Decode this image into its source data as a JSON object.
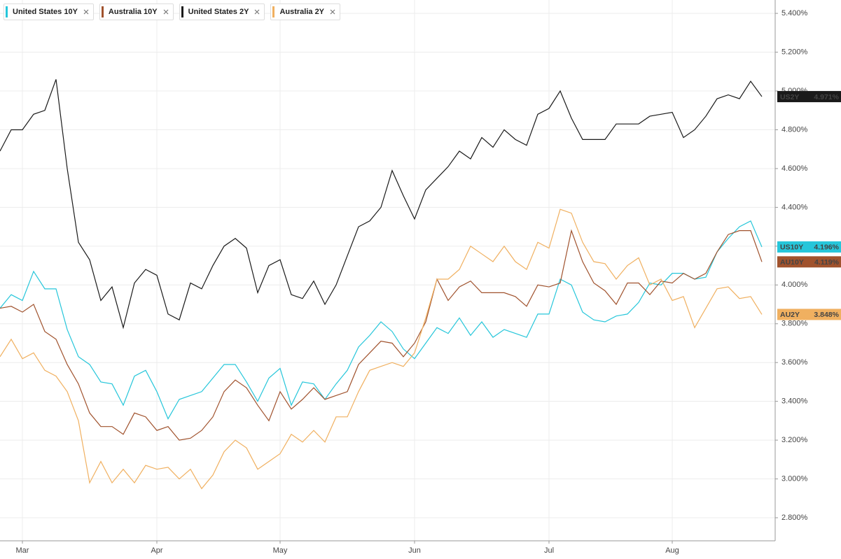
{
  "chart_data": {
    "type": "line",
    "categories": [
      null,
      null,
      "Mar",
      null,
      null,
      null,
      null,
      null,
      null,
      null,
      null,
      null,
      null,
      null,
      "Apr",
      null,
      null,
      null,
      null,
      null,
      null,
      null,
      null,
      null,
      null,
      "May",
      null,
      null,
      null,
      null,
      null,
      null,
      null,
      null,
      null,
      null,
      null,
      "Jun",
      null,
      null,
      null,
      null,
      null,
      null,
      null,
      null,
      null,
      null,
      null,
      "Jul",
      null,
      null,
      null,
      null,
      null,
      null,
      null,
      null,
      null,
      null,
      "Aug",
      null,
      null,
      null,
      null,
      null,
      null,
      null,
      null
    ],
    "series": [
      {
        "name": "United States 10Y",
        "short_name": "US10Y",
        "color": "#26c6da",
        "values": [
          3.88,
          3.95,
          3.92,
          4.07,
          3.98,
          3.98,
          3.77,
          3.63,
          3.59,
          3.5,
          3.49,
          3.38,
          3.53,
          3.56,
          3.45,
          3.31,
          3.41,
          3.43,
          3.45,
          3.52,
          3.59,
          3.59,
          3.5,
          3.4,
          3.52,
          3.57,
          3.38,
          3.5,
          3.49,
          3.41,
          3.49,
          3.56,
          3.68,
          3.74,
          3.81,
          3.76,
          3.67,
          3.62,
          3.7,
          3.78,
          3.75,
          3.83,
          3.74,
          3.81,
          3.73,
          3.77,
          3.75,
          3.73,
          3.85,
          3.85,
          4.03,
          4.0,
          3.86,
          3.82,
          3.81,
          3.84,
          3.85,
          3.91,
          4.01,
          4.0,
          4.06,
          4.06,
          4.03,
          4.04,
          4.17,
          4.24,
          4.3,
          4.33,
          4.196
        ],
        "value_labels": [
          null,
          null,
          null,
          null,
          null,
          null,
          null,
          null,
          null,
          null,
          null,
          null,
          null,
          null,
          null,
          null,
          null,
          null,
          null,
          null,
          null,
          null,
          null,
          null,
          null,
          null,
          null,
          null,
          null,
          null,
          null,
          null,
          null,
          null,
          null,
          null,
          null,
          null,
          null,
          null,
          null,
          null,
          null,
          null,
          null,
          null,
          null,
          null,
          null,
          null,
          null,
          null,
          null,
          null,
          null,
          null,
          null,
          null,
          null,
          null,
          null,
          null,
          null,
          null,
          null,
          null,
          null,
          null,
          "4.196%"
        ]
      },
      {
        "name": "Australia 10Y",
        "short_name": "AU10Y",
        "color": "#a0522d",
        "values": [
          3.88,
          3.89,
          3.86,
          3.9,
          3.76,
          3.72,
          3.59,
          3.49,
          3.34,
          3.27,
          3.27,
          3.23,
          3.34,
          3.32,
          3.25,
          3.27,
          3.2,
          3.21,
          3.25,
          3.32,
          3.45,
          3.51,
          3.47,
          3.38,
          3.3,
          3.45,
          3.36,
          3.41,
          3.47,
          3.41,
          3.43,
          3.45,
          3.59,
          3.65,
          3.71,
          3.7,
          3.63,
          3.7,
          3.81,
          4.03,
          3.92,
          3.99,
          4.02,
          3.96,
          3.96,
          3.96,
          3.94,
          3.89,
          4.0,
          3.99,
          4.01,
          4.28,
          4.12,
          4.01,
          3.97,
          3.9,
          4.01,
          4.01,
          3.95,
          4.02,
          4.01,
          4.06,
          4.03,
          4.06,
          4.17,
          4.26,
          4.28,
          4.28,
          4.119
        ],
        "value_labels": [
          null,
          null,
          null,
          null,
          null,
          null,
          null,
          null,
          null,
          null,
          null,
          null,
          null,
          null,
          null,
          null,
          null,
          null,
          null,
          null,
          null,
          null,
          null,
          null,
          null,
          null,
          null,
          null,
          null,
          null,
          null,
          null,
          null,
          null,
          null,
          null,
          null,
          null,
          null,
          null,
          null,
          null,
          null,
          null,
          null,
          null,
          null,
          null,
          null,
          null,
          null,
          null,
          null,
          null,
          null,
          null,
          null,
          null,
          null,
          null,
          null,
          null,
          null,
          null,
          null,
          null,
          null,
          null,
          "4.119%"
        ]
      },
      {
        "name": "United States 2Y",
        "short_name": "US2Y",
        "color": "#1a1a1a",
        "values": [
          4.69,
          4.8,
          4.8,
          4.88,
          4.9,
          5.06,
          4.6,
          4.22,
          4.13,
          3.92,
          3.99,
          3.78,
          4.01,
          4.08,
          4.05,
          3.85,
          3.82,
          4.01,
          3.98,
          4.1,
          4.2,
          4.24,
          4.19,
          3.96,
          4.1,
          4.13,
          3.95,
          3.93,
          4.02,
          3.9,
          4.0,
          4.15,
          4.3,
          4.33,
          4.4,
          4.59,
          4.46,
          4.34,
          4.49,
          4.55,
          4.61,
          4.69,
          4.65,
          4.76,
          4.71,
          4.8,
          4.75,
          4.72,
          4.88,
          4.91,
          5.0,
          4.86,
          4.75,
          4.75,
          4.75,
          4.83,
          4.83,
          4.83,
          4.87,
          4.88,
          4.89,
          4.76,
          4.8,
          4.87,
          4.96,
          4.98,
          4.96,
          5.05,
          4.971
        ],
        "value_labels": [
          null,
          null,
          null,
          null,
          null,
          null,
          null,
          null,
          null,
          null,
          null,
          null,
          null,
          null,
          null,
          null,
          null,
          null,
          null,
          null,
          null,
          null,
          null,
          null,
          null,
          null,
          null,
          null,
          null,
          null,
          null,
          null,
          null,
          null,
          null,
          null,
          null,
          null,
          null,
          null,
          null,
          null,
          null,
          null,
          null,
          null,
          null,
          null,
          null,
          null,
          null,
          null,
          null,
          null,
          null,
          null,
          null,
          null,
          null,
          null,
          null,
          null,
          null,
          null,
          null,
          null,
          null,
          null,
          "4.971%"
        ]
      },
      {
        "name": "Australia 2Y",
        "short_name": "AU2Y",
        "color": "#f0b060",
        "values": [
          3.63,
          3.72,
          3.62,
          3.65,
          3.56,
          3.53,
          3.45,
          3.3,
          2.98,
          3.09,
          2.98,
          3.05,
          2.98,
          3.07,
          3.05,
          3.06,
          3.0,
          3.05,
          2.95,
          3.02,
          3.14,
          3.2,
          3.16,
          3.05,
          3.09,
          3.13,
          3.23,
          3.19,
          3.25,
          3.19,
          3.32,
          3.32,
          3.45,
          3.56,
          3.58,
          3.6,
          3.58,
          3.65,
          3.83,
          4.03,
          4.03,
          4.08,
          4.2,
          4.16,
          4.12,
          4.2,
          4.12,
          4.08,
          4.22,
          4.19,
          4.39,
          4.37,
          4.22,
          4.12,
          4.11,
          4.03,
          4.1,
          4.14,
          4.0,
          4.03,
          3.92,
          3.94,
          3.78,
          3.88,
          3.98,
          3.99,
          3.93,
          3.94,
          3.848
        ],
        "value_labels": [
          null,
          null,
          null,
          null,
          null,
          null,
          null,
          null,
          null,
          null,
          null,
          null,
          null,
          null,
          null,
          null,
          null,
          null,
          null,
          null,
          null,
          null,
          null,
          null,
          null,
          null,
          null,
          null,
          null,
          null,
          null,
          null,
          null,
          null,
          null,
          null,
          null,
          null,
          null,
          null,
          null,
          null,
          null,
          null,
          null,
          null,
          null,
          null,
          null,
          null,
          null,
          null,
          null,
          null,
          null,
          null,
          null,
          null,
          null,
          null,
          null,
          null,
          null,
          null,
          null,
          null,
          null,
          null,
          "3.848%"
        ]
      }
    ],
    "ylim": [
      2.681,
      5.469
    ],
    "yticks": [
      {
        "value": 2.8,
        "label": "2.800%"
      },
      {
        "value": 3.0,
        "label": "3.000%"
      },
      {
        "value": 3.2,
        "label": "3.200%"
      },
      {
        "value": 3.4,
        "label": "3.400%"
      },
      {
        "value": 3.6,
        "label": "3.600%"
      },
      {
        "value": 3.8,
        "label": "3.800%"
      },
      {
        "value": 4.0,
        "label": "4.000%"
      },
      {
        "value": 4.2,
        "label": "4.200%"
      },
      {
        "value": 4.4,
        "label": "4.400%"
      },
      {
        "value": 4.6,
        "label": "4.600%"
      },
      {
        "value": 4.8,
        "label": "4.800%"
      },
      {
        "value": 5.0,
        "label": "5.000%"
      },
      {
        "value": 5.2,
        "label": "5.200%"
      },
      {
        "value": 5.4,
        "label": "5.400%"
      }
    ],
    "grid": true
  }
}
